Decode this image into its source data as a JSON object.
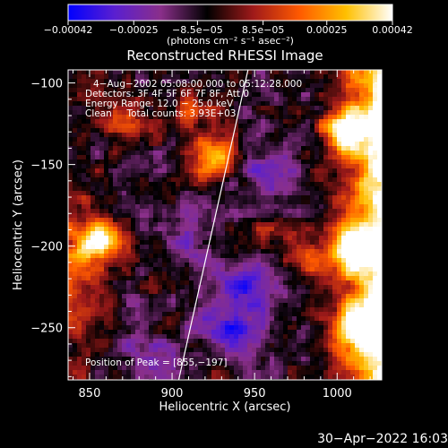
{
  "chart_data": {
    "type": "heatmap",
    "title": "Reconstructed RHESSI Image",
    "xlabel": "Heliocentric X (arcsec)",
    "ylabel": "Heliocentric Y (arcsec)",
    "xlim": [
      837,
      1027
    ],
    "ylim": [
      -282,
      -92
    ],
    "x_ticks": [
      {
        "value": 850,
        "label": "850"
      },
      {
        "value": 900,
        "label": "900"
      },
      {
        "value": 950,
        "label": "950"
      },
      {
        "value": 1000,
        "label": "1000"
      }
    ],
    "y_ticks": [
      {
        "value": -100,
        "label": "−100"
      },
      {
        "value": -150,
        "label": "−150"
      },
      {
        "value": -200,
        "label": "−200"
      },
      {
        "value": -250,
        "label": "−250"
      }
    ],
    "colorbar": {
      "range": [
        -0.00042,
        0.00042
      ],
      "tick_values": [
        -0.00042,
        -0.00025,
        -8.5e-05,
        8.5e-05,
        0.00025,
        0.00042
      ],
      "tick_labels": [
        "−0.00042",
        "−0.00025",
        "−8.5e−05",
        "8.5e−05",
        "0.00025",
        "0.00042"
      ],
      "unit_label": "(photons cm⁻² s⁻¹ asec⁻²)"
    },
    "annotations": [
      "4−Aug−2002 05:08:00.000 to 05:12:28.000",
      "Detectors: 3F 4F 5F 6F 7F 8F, Att 0",
      "Energy Range: 12.0 − 25.0 keV",
      "Clean     Total counts: 3.93E+03"
    ],
    "peak_label": "Position of Peak = [855,−197]",
    "peak": {
      "x": 855,
      "y": -197
    },
    "limb_line": [
      {
        "x": 904,
        "y": -282
      },
      {
        "x": 946,
        "y": -92
      }
    ],
    "hot_regions": [
      {
        "x": 1005,
        "y": -130,
        "level": 0.00042
      },
      {
        "x": 1010,
        "y": -200,
        "level": 0.00042
      },
      {
        "x": 1010,
        "y": -250,
        "level": 0.00038
      },
      {
        "x": 857,
        "y": -197,
        "level": 0.00042
      },
      {
        "x": 925,
        "y": -147,
        "level": 0.0004
      },
      {
        "x": 872,
        "y": -122,
        "level": 0.00022
      },
      {
        "x": 910,
        "y": -117,
        "level": 0.0002
      },
      {
        "x": 985,
        "y": -210,
        "level": 0.0002
      },
      {
        "x": 960,
        "y": -190,
        "level": 0.00012
      },
      {
        "x": 930,
        "y": -270,
        "level": 0.0001
      }
    ],
    "cold_regions": [
      {
        "x": 935,
        "y": -255,
        "level": -0.00028
      },
      {
        "x": 945,
        "y": -225,
        "level": -0.00022
      },
      {
        "x": 960,
        "y": -160,
        "level": -0.00018
      },
      {
        "x": 905,
        "y": -190,
        "level": -0.00012
      },
      {
        "x": 880,
        "y": -265,
        "level": -0.0001
      }
    ],
    "background_level": -8e-05,
    "colormap": [
      "#0000ff",
      "#5a1fd0",
      "#8a2f8a",
      "#000000",
      "#a01a1a",
      "#ff5a00",
      "#ffc000",
      "#ffffff"
    ]
  },
  "footer": {
    "timestamp": "30−Apr−2022 16:03"
  }
}
